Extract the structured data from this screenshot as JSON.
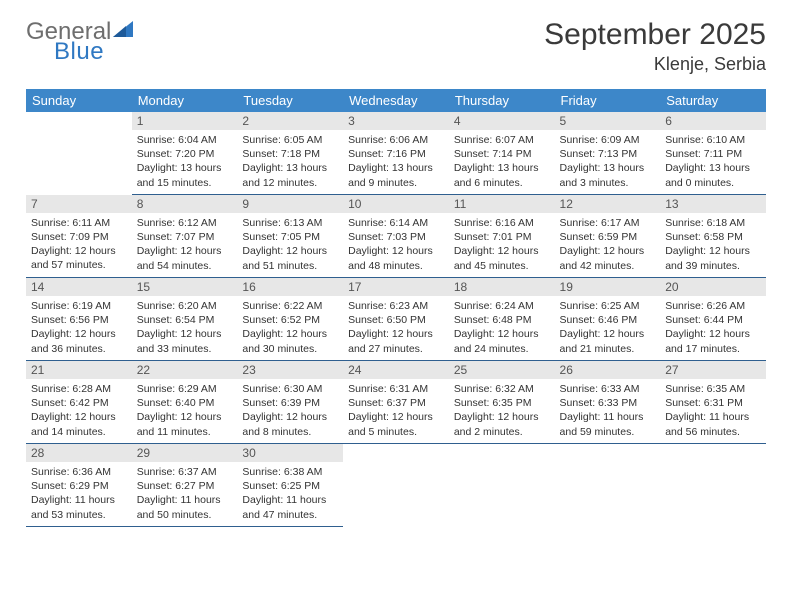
{
  "logo": {
    "text1": "General",
    "text2": "Blue",
    "color_gray": "#6e6e6e",
    "color_blue": "#2f78c2"
  },
  "title": "September 2025",
  "location": "Klenje, Serbia",
  "colors": {
    "header_bg": "#3d87c9",
    "header_text": "#ffffff",
    "daynum_bg": "#e7e7e7",
    "daynum_text": "#555555",
    "row_divider": "#2f5f8f",
    "body_text": "#333333"
  },
  "weekdays": [
    "Sunday",
    "Monday",
    "Tuesday",
    "Wednesday",
    "Thursday",
    "Friday",
    "Saturday"
  ],
  "weeks": [
    [
      null,
      {
        "n": "1",
        "sr": "6:04 AM",
        "ss": "7:20 PM",
        "dl": "13 hours and 15 minutes."
      },
      {
        "n": "2",
        "sr": "6:05 AM",
        "ss": "7:18 PM",
        "dl": "13 hours and 12 minutes."
      },
      {
        "n": "3",
        "sr": "6:06 AM",
        "ss": "7:16 PM",
        "dl": "13 hours and 9 minutes."
      },
      {
        "n": "4",
        "sr": "6:07 AM",
        "ss": "7:14 PM",
        "dl": "13 hours and 6 minutes."
      },
      {
        "n": "5",
        "sr": "6:09 AM",
        "ss": "7:13 PM",
        "dl": "13 hours and 3 minutes."
      },
      {
        "n": "6",
        "sr": "6:10 AM",
        "ss": "7:11 PM",
        "dl": "13 hours and 0 minutes."
      }
    ],
    [
      {
        "n": "7",
        "sr": "6:11 AM",
        "ss": "7:09 PM",
        "dl": "12 hours and 57 minutes."
      },
      {
        "n": "8",
        "sr": "6:12 AM",
        "ss": "7:07 PM",
        "dl": "12 hours and 54 minutes."
      },
      {
        "n": "9",
        "sr": "6:13 AM",
        "ss": "7:05 PM",
        "dl": "12 hours and 51 minutes."
      },
      {
        "n": "10",
        "sr": "6:14 AM",
        "ss": "7:03 PM",
        "dl": "12 hours and 48 minutes."
      },
      {
        "n": "11",
        "sr": "6:16 AM",
        "ss": "7:01 PM",
        "dl": "12 hours and 45 minutes."
      },
      {
        "n": "12",
        "sr": "6:17 AM",
        "ss": "6:59 PM",
        "dl": "12 hours and 42 minutes."
      },
      {
        "n": "13",
        "sr": "6:18 AM",
        "ss": "6:58 PM",
        "dl": "12 hours and 39 minutes."
      }
    ],
    [
      {
        "n": "14",
        "sr": "6:19 AM",
        "ss": "6:56 PM",
        "dl": "12 hours and 36 minutes."
      },
      {
        "n": "15",
        "sr": "6:20 AM",
        "ss": "6:54 PM",
        "dl": "12 hours and 33 minutes."
      },
      {
        "n": "16",
        "sr": "6:22 AM",
        "ss": "6:52 PM",
        "dl": "12 hours and 30 minutes."
      },
      {
        "n": "17",
        "sr": "6:23 AM",
        "ss": "6:50 PM",
        "dl": "12 hours and 27 minutes."
      },
      {
        "n": "18",
        "sr": "6:24 AM",
        "ss": "6:48 PM",
        "dl": "12 hours and 24 minutes."
      },
      {
        "n": "19",
        "sr": "6:25 AM",
        "ss": "6:46 PM",
        "dl": "12 hours and 21 minutes."
      },
      {
        "n": "20",
        "sr": "6:26 AM",
        "ss": "6:44 PM",
        "dl": "12 hours and 17 minutes."
      }
    ],
    [
      {
        "n": "21",
        "sr": "6:28 AM",
        "ss": "6:42 PM",
        "dl": "12 hours and 14 minutes."
      },
      {
        "n": "22",
        "sr": "6:29 AM",
        "ss": "6:40 PM",
        "dl": "12 hours and 11 minutes."
      },
      {
        "n": "23",
        "sr": "6:30 AM",
        "ss": "6:39 PM",
        "dl": "12 hours and 8 minutes."
      },
      {
        "n": "24",
        "sr": "6:31 AM",
        "ss": "6:37 PM",
        "dl": "12 hours and 5 minutes."
      },
      {
        "n": "25",
        "sr": "6:32 AM",
        "ss": "6:35 PM",
        "dl": "12 hours and 2 minutes."
      },
      {
        "n": "26",
        "sr": "6:33 AM",
        "ss": "6:33 PM",
        "dl": "11 hours and 59 minutes."
      },
      {
        "n": "27",
        "sr": "6:35 AM",
        "ss": "6:31 PM",
        "dl": "11 hours and 56 minutes."
      }
    ],
    [
      {
        "n": "28",
        "sr": "6:36 AM",
        "ss": "6:29 PM",
        "dl": "11 hours and 53 minutes."
      },
      {
        "n": "29",
        "sr": "6:37 AM",
        "ss": "6:27 PM",
        "dl": "11 hours and 50 minutes."
      },
      {
        "n": "30",
        "sr": "6:38 AM",
        "ss": "6:25 PM",
        "dl": "11 hours and 47 minutes."
      },
      null,
      null,
      null,
      null
    ]
  ],
  "labels": {
    "sunrise": "Sunrise:",
    "sunset": "Sunset:",
    "daylight": "Daylight:"
  }
}
